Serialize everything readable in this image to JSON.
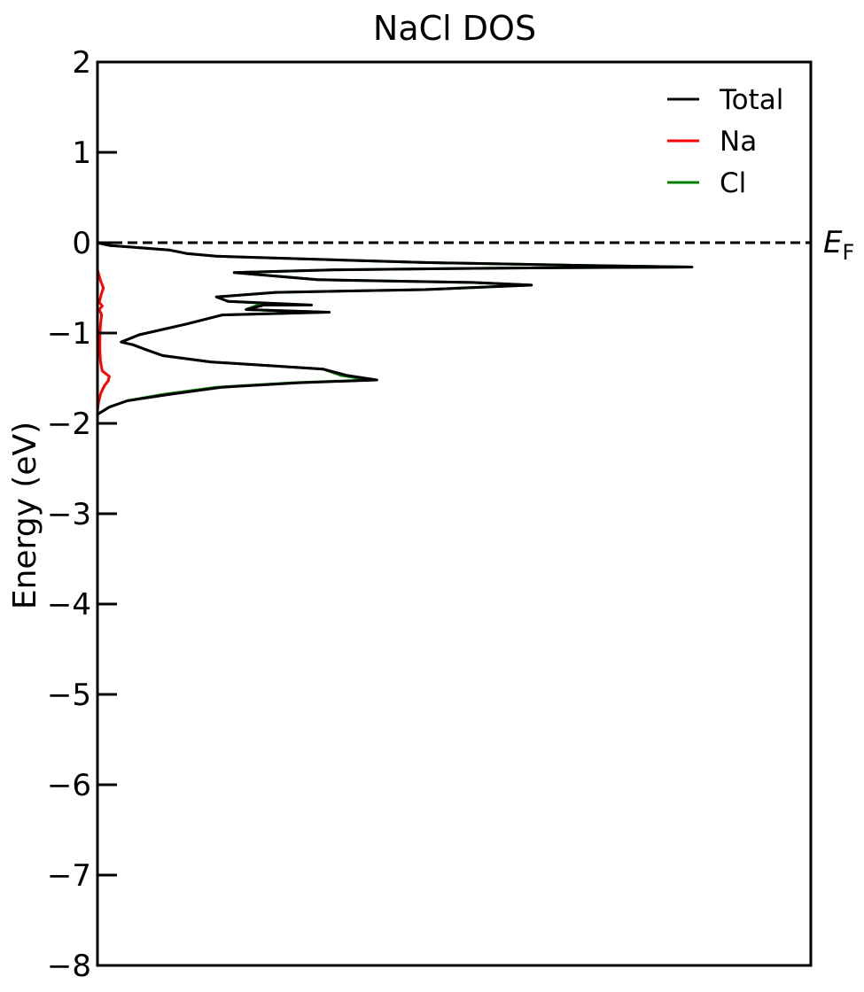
{
  "chart_data": {
    "type": "line",
    "title": "NaCl DOS",
    "ylabel": "Energy (eV)",
    "xlabel": "",
    "orientation": "horizontal-dos",
    "ylim": [
      -8,
      2
    ],
    "xlim": [
      0,
      1.2
    ],
    "yticks": [
      2,
      1,
      0,
      -1,
      -2,
      -3,
      -4,
      -5,
      -6,
      -7,
      -8
    ],
    "ytick_labels": [
      "2",
      "1",
      "0",
      "−1",
      "−2",
      "−3",
      "−4",
      "−5",
      "−6",
      "−7",
      "−8"
    ],
    "show_xticks": false,
    "grid": false,
    "legend_position": "upper-right",
    "fermi_level": {
      "energy": 0,
      "label_main": "E",
      "label_sub": "F",
      "style": "dashed",
      "color": "#000000"
    },
    "series": [
      {
        "name": "Cl",
        "color": "#008000",
        "points": [
          [
            0.0,
            0.0
          ],
          [
            0.02,
            -0.03
          ],
          [
            0.06,
            -0.05
          ],
          [
            0.12,
            -0.08
          ],
          [
            0.15,
            -0.12
          ],
          [
            0.2,
            -0.15
          ],
          [
            0.35,
            -0.18
          ],
          [
            0.55,
            -0.22
          ],
          [
            0.8,
            -0.25
          ],
          [
            1.0,
            -0.27
          ],
          [
            0.7,
            -0.28
          ],
          [
            0.4,
            -0.3
          ],
          [
            0.23,
            -0.33
          ],
          [
            0.37,
            -0.41
          ],
          [
            0.63,
            -0.44
          ],
          [
            0.73,
            -0.47
          ],
          [
            0.55,
            -0.52
          ],
          [
            0.3,
            -0.55
          ],
          [
            0.2,
            -0.6
          ],
          [
            0.22,
            -0.65
          ],
          [
            0.34,
            -0.69
          ],
          [
            0.27,
            -0.69
          ],
          [
            0.25,
            -0.74
          ],
          [
            0.38,
            -0.77
          ],
          [
            0.21,
            -0.8
          ],
          [
            0.15,
            -0.9
          ],
          [
            0.07,
            -1.02
          ],
          [
            0.04,
            -1.1
          ],
          [
            0.06,
            -1.13
          ],
          [
            0.08,
            -1.18
          ],
          [
            0.11,
            -1.25
          ],
          [
            0.19,
            -1.32
          ],
          [
            0.38,
            -1.4
          ],
          [
            0.41,
            -1.47
          ],
          [
            0.46,
            -1.52
          ],
          [
            0.33,
            -1.55
          ],
          [
            0.2,
            -1.6
          ],
          [
            0.11,
            -1.68
          ],
          [
            0.05,
            -1.75
          ],
          [
            0.02,
            -1.82
          ],
          [
            0.0,
            -1.9
          ]
        ]
      },
      {
        "name": "Na",
        "color": "#ff0000",
        "points": [
          [
            0.0,
            -0.2
          ],
          [
            0.0,
            -0.3
          ],
          [
            0.005,
            -0.42
          ],
          [
            0.01,
            -0.5
          ],
          [
            0.006,
            -0.58
          ],
          [
            0.003,
            -0.66
          ],
          [
            0.008,
            -0.7
          ],
          [
            0.003,
            -0.74
          ],
          [
            0.007,
            -0.8
          ],
          [
            0.005,
            -0.9
          ],
          [
            0.004,
            -1.05
          ],
          [
            0.004,
            -1.2
          ],
          [
            0.005,
            -1.32
          ],
          [
            0.008,
            -1.42
          ],
          [
            0.02,
            -1.48
          ],
          [
            0.018,
            -1.53
          ],
          [
            0.012,
            -1.58
          ],
          [
            0.006,
            -1.66
          ],
          [
            0.002,
            -1.76
          ],
          [
            0.0,
            -1.86
          ]
        ]
      },
      {
        "name": "Total",
        "color": "#000000",
        "points": [
          [
            0.0,
            0.0
          ],
          [
            0.02,
            -0.03
          ],
          [
            0.06,
            -0.05
          ],
          [
            0.12,
            -0.08
          ],
          [
            0.15,
            -0.12
          ],
          [
            0.2,
            -0.15
          ],
          [
            0.35,
            -0.18
          ],
          [
            0.55,
            -0.22
          ],
          [
            0.8,
            -0.25
          ],
          [
            1.0,
            -0.27
          ],
          [
            0.7,
            -0.28
          ],
          [
            0.4,
            -0.3
          ],
          [
            0.23,
            -0.33
          ],
          [
            0.37,
            -0.41
          ],
          [
            0.63,
            -0.44
          ],
          [
            0.73,
            -0.47
          ],
          [
            0.55,
            -0.52
          ],
          [
            0.3,
            -0.55
          ],
          [
            0.2,
            -0.6
          ],
          [
            0.22,
            -0.65
          ],
          [
            0.36,
            -0.69
          ],
          [
            0.28,
            -0.69
          ],
          [
            0.25,
            -0.74
          ],
          [
            0.39,
            -0.77
          ],
          [
            0.21,
            -0.8
          ],
          [
            0.15,
            -0.9
          ],
          [
            0.07,
            -1.02
          ],
          [
            0.04,
            -1.1
          ],
          [
            0.06,
            -1.13
          ],
          [
            0.08,
            -1.18
          ],
          [
            0.11,
            -1.25
          ],
          [
            0.19,
            -1.32
          ],
          [
            0.38,
            -1.4
          ],
          [
            0.42,
            -1.47
          ],
          [
            0.47,
            -1.52
          ],
          [
            0.34,
            -1.55
          ],
          [
            0.21,
            -1.6
          ],
          [
            0.12,
            -1.68
          ],
          [
            0.05,
            -1.75
          ],
          [
            0.02,
            -1.82
          ],
          [
            0.0,
            -1.9
          ]
        ]
      }
    ],
    "legend": [
      {
        "name": "Total",
        "color": "#000000"
      },
      {
        "name": "Na",
        "color": "#ff0000"
      },
      {
        "name": "Cl",
        "color": "#008000"
      }
    ]
  }
}
